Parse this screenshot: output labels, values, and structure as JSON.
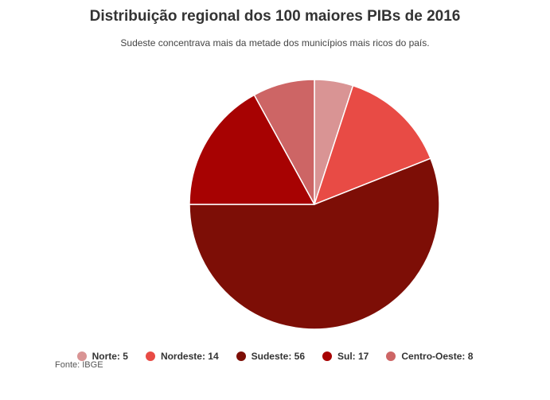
{
  "chart_data": {
    "type": "pie",
    "title": "Distribuição regional dos 100 maiores PIBs de 2016",
    "subtitle": "Sudeste concentrava mais da metade dos municípios mais ricos do país.",
    "slices": [
      {
        "label": "Norte: 5",
        "name": "Norte",
        "value": 5,
        "color": "#d99494"
      },
      {
        "label": "Nordeste: 14",
        "name": "Nordeste",
        "value": 14,
        "color": "#e84b45"
      },
      {
        "label": "Sudeste: 56",
        "name": "Sudeste",
        "value": 56,
        "color": "#7d0e06"
      },
      {
        "label": "Sul: 17",
        "name": "Sul",
        "value": 17,
        "color": "#a70202"
      },
      {
        "label": "Centro-Oeste: 8",
        "name": "Centro-Oeste",
        "value": 8,
        "color": "#cd6565"
      }
    ],
    "legend_position": "bottom"
  },
  "source": "Fonte: IBGE"
}
